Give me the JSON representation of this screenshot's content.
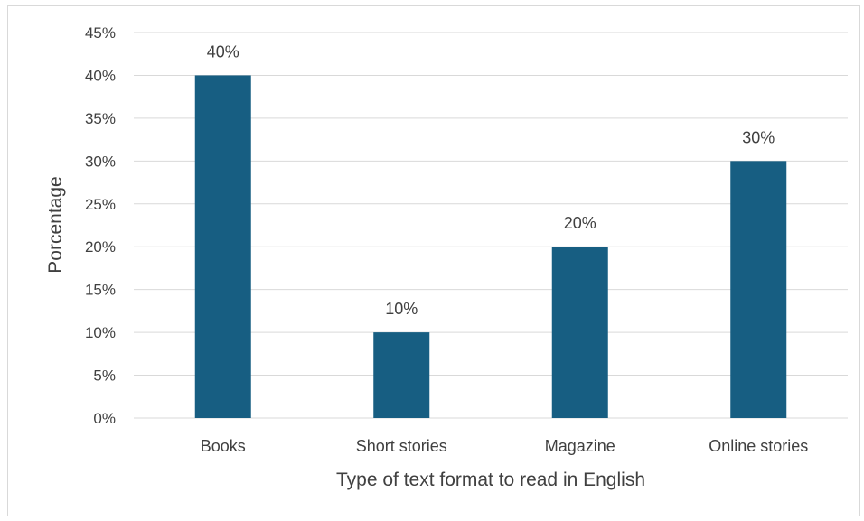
{
  "chart_data": {
    "type": "bar",
    "categories": [
      "Books",
      "Short stories",
      "Magazine",
      "Online stories"
    ],
    "values": [
      40,
      10,
      20,
      30
    ],
    "data_labels": [
      "40%",
      "10%",
      "20%",
      "30%"
    ],
    "title": "",
    "xlabel": "Type of text format to read in English",
    "ylabel": "Porcentage",
    "ylim": [
      0,
      45
    ],
    "yticks": [
      0,
      5,
      10,
      15,
      20,
      25,
      30,
      35,
      40,
      45
    ],
    "ytick_labels": [
      "0%",
      "5%",
      "10%",
      "15%",
      "20%",
      "25%",
      "30%",
      "35%",
      "40%",
      "45%"
    ],
    "grid": true,
    "legend": "none",
    "bar_color": "#175E82",
    "grid_color": "#D9D9D9",
    "text_color": "#404040"
  }
}
